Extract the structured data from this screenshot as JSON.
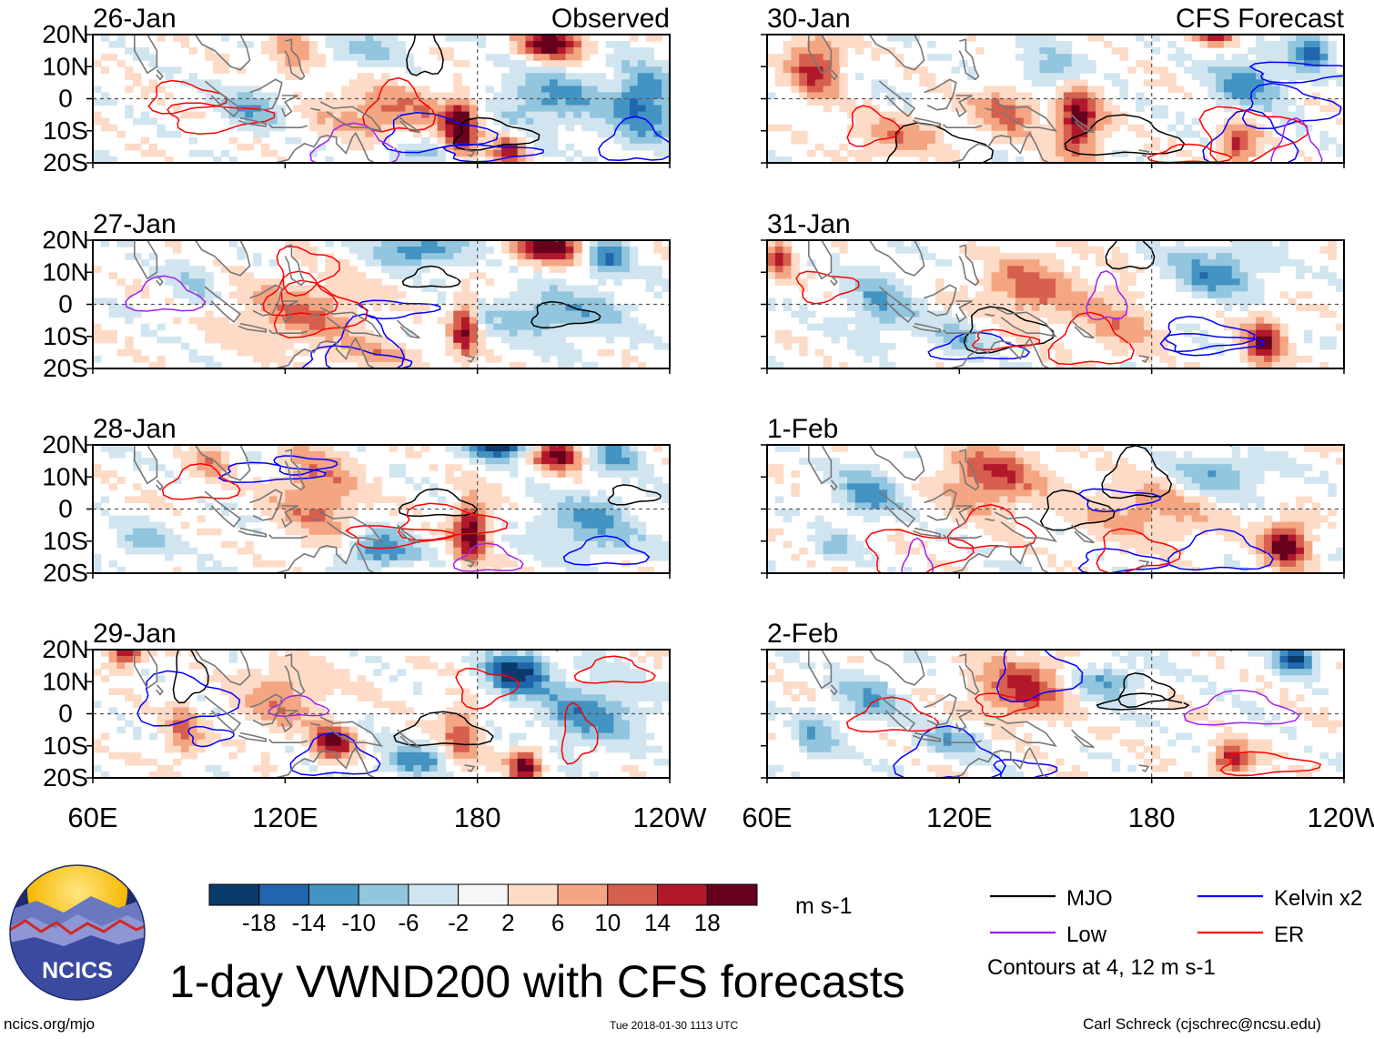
{
  "chart_data": {
    "type": "heatmap",
    "title": "1-day VWND200 with CFS forecasts",
    "units": "m s-1",
    "columns": [
      {
        "header": "Observed",
        "dates": [
          "26-Jan",
          "27-Jan",
          "28-Jan",
          "29-Jan"
        ]
      },
      {
        "header": "CFS Forecast",
        "dates": [
          "30-Jan",
          "31-Jan",
          "1-Feb",
          "2-Feb"
        ]
      }
    ],
    "x_ticks": [
      "60E",
      "120E",
      "180",
      "120W"
    ],
    "y_ticks": [
      "20N",
      "10N",
      "0",
      "10S",
      "20S"
    ],
    "xlim": [
      60,
      240
    ],
    "ylim": [
      -20,
      20
    ],
    "colorbar": {
      "labels": [
        "-18",
        "-14",
        "-10",
        "-6",
        "-2",
        "2",
        "6",
        "10",
        "14",
        "18"
      ],
      "colors": [
        "#0b3b6b",
        "#2166ac",
        "#4393c3",
        "#92c5de",
        "#d1e5f0",
        "#f7f7f7",
        "#fddbc7",
        "#f4a582",
        "#d6604d",
        "#b2182b",
        "#67001f"
      ]
    },
    "legend": [
      {
        "label": "MJO",
        "color": "#000000"
      },
      {
        "label": "Kelvin x2",
        "color": "#0000ff"
      },
      {
        "label": "Low",
        "color": "#a020f0"
      },
      {
        "label": "ER",
        "color": "#ff0000"
      }
    ],
    "contour_note": "Contours at 4, 12 m s-1"
  },
  "logo_text": "NCICS",
  "footer": {
    "link": "ncics.org/mjo",
    "timestamp": "Tue 2018-01-30 1113 UTC",
    "author": "Carl Schreck (cjschrec@ncsu.edu)"
  }
}
